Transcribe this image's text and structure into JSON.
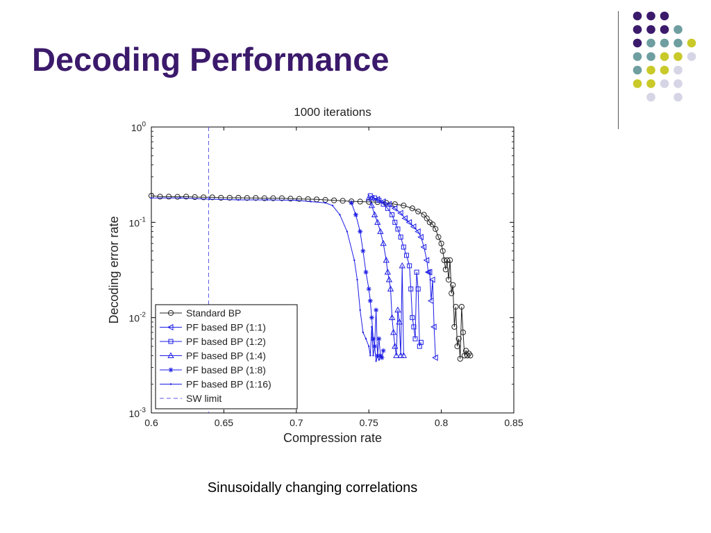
{
  "slide": {
    "title": "Decoding Performance",
    "caption": "Sinusoidally changing correlations"
  },
  "decor": {
    "dot_colors": [
      "#3b1a6b",
      "#6f9ea0",
      "#c9c92a",
      "#d5d5e6"
    ]
  },
  "chart_data": {
    "type": "line",
    "title": "1000 iterations",
    "xlabel": "Compression rate",
    "ylabel": "Decoding error rate",
    "xlim": [
      0.6,
      0.85
    ],
    "ylim": [
      0.001,
      1
    ],
    "yscale": "log",
    "xticks": [
      "0.6",
      "0.65",
      "0.7",
      "0.75",
      "0.8",
      "0.85"
    ],
    "yticks": [
      {
        "base": "10",
        "exp": "0",
        "value": 1
      },
      {
        "base": "10",
        "exp": "-1",
        "value": 0.1
      },
      {
        "base": "10",
        "exp": "-2",
        "value": 0.01
      },
      {
        "base": "10",
        "exp": "-3",
        "value": 0.001
      }
    ],
    "grid": false,
    "legend_position": "bottom-left",
    "series": [
      {
        "name": "Standard BP",
        "color": "#222222",
        "marker": "circle",
        "x": [
          0.6,
          0.606,
          0.612,
          0.618,
          0.624,
          0.63,
          0.636,
          0.642,
          0.648,
          0.654,
          0.66,
          0.666,
          0.672,
          0.678,
          0.684,
          0.69,
          0.696,
          0.702,
          0.708,
          0.714,
          0.72,
          0.726,
          0.732,
          0.738,
          0.744,
          0.75,
          0.756,
          0.762,
          0.768,
          0.774,
          0.78,
          0.784,
          0.788,
          0.79,
          0.792,
          0.794,
          0.796,
          0.798,
          0.8,
          0.801,
          0.802,
          0.803,
          0.804,
          0.805,
          0.806,
          0.807,
          0.808,
          0.809,
          0.81,
          0.811,
          0.812,
          0.813,
          0.814,
          0.815,
          0.816,
          0.817,
          0.818,
          0.819,
          0.82
        ],
        "y": [
          0.19,
          0.186,
          0.186,
          0.185,
          0.186,
          0.184,
          0.183,
          0.183,
          0.181,
          0.181,
          0.181,
          0.18,
          0.18,
          0.179,
          0.179,
          0.179,
          0.177,
          0.176,
          0.175,
          0.174,
          0.172,
          0.17,
          0.168,
          0.166,
          0.165,
          0.164,
          0.163,
          0.16,
          0.155,
          0.15,
          0.14,
          0.13,
          0.12,
          0.11,
          0.1,
          0.095,
          0.085,
          0.07,
          0.06,
          0.05,
          0.04,
          0.032,
          0.04,
          0.025,
          0.04,
          0.018,
          0.022,
          0.008,
          0.013,
          0.005,
          0.006,
          0.0037,
          0.013,
          0.007,
          0.004,
          0.0045,
          0.004,
          0.0042,
          0.004
        ]
      },
      {
        "name": "PF based BP (1:1)",
        "color": "#1a1ae6",
        "marker": "triangle-left",
        "x": [
          0.752,
          0.756,
          0.76,
          0.764,
          0.768,
          0.772,
          0.775,
          0.778,
          0.781,
          0.784,
          0.786,
          0.788,
          0.79,
          0.791,
          0.792,
          0.793,
          0.794,
          0.795,
          0.796
        ],
        "y": [
          0.18,
          0.175,
          0.165,
          0.155,
          0.14,
          0.125,
          0.11,
          0.1,
          0.09,
          0.08,
          0.07,
          0.055,
          0.04,
          0.03,
          0.03,
          0.015,
          0.025,
          0.008,
          0.0038
        ]
      },
      {
        "name": "PF based BP (1:2)",
        "color": "#1a1ae6",
        "marker": "square",
        "x": [
          0.751,
          0.754,
          0.757,
          0.76,
          0.763,
          0.766,
          0.768,
          0.77,
          0.772,
          0.774,
          0.776,
          0.778,
          0.779,
          0.78,
          0.781,
          0.782,
          0.783,
          0.784,
          0.785,
          0.786
        ],
        "y": [
          0.19,
          0.18,
          0.17,
          0.155,
          0.14,
          0.12,
          0.1,
          0.085,
          0.07,
          0.055,
          0.045,
          0.035,
          0.02,
          0.01,
          0.008,
          0.006,
          0.03,
          0.02,
          0.005,
          0.0055
        ]
      },
      {
        "name": "PF based BP (1:4)",
        "color": "#1a1ae6",
        "marker": "triangle-up",
        "x": [
          0.75,
          0.752,
          0.754,
          0.756,
          0.758,
          0.76,
          0.762,
          0.763,
          0.764,
          0.765,
          0.766,
          0.767,
          0.768,
          0.769,
          0.77,
          0.771,
          0.772,
          0.773,
          0.774
        ],
        "y": [
          0.18,
          0.15,
          0.12,
          0.1,
          0.08,
          0.06,
          0.04,
          0.03,
          0.025,
          0.02,
          0.01,
          0.007,
          0.005,
          0.004,
          0.012,
          0.009,
          0.004,
          0.035,
          0.004
        ]
      },
      {
        "name": "PF based BP (1:8)",
        "color": "#1a1ae6",
        "marker": "star",
        "x": [
          0.738,
          0.741,
          0.744,
          0.746,
          0.748,
          0.75,
          0.751,
          0.752,
          0.753,
          0.754,
          0.755,
          0.756,
          0.757,
          0.758,
          0.759,
          0.76
        ],
        "y": [
          0.16,
          0.12,
          0.08,
          0.05,
          0.03,
          0.02,
          0.015,
          0.01,
          0.006,
          0.005,
          0.012,
          0.004,
          0.006,
          0.004,
          0.0038,
          0.0045
        ]
      },
      {
        "name": "PF based BP (1:16)",
        "color": "#1a1ae6",
        "marker": "dot",
        "x": [
          0.6,
          0.62,
          0.64,
          0.66,
          0.68,
          0.7,
          0.71,
          0.72,
          0.725,
          0.73,
          0.735,
          0.74,
          0.742,
          0.744,
          0.746,
          0.748,
          0.75,
          0.751,
          0.752,
          0.753,
          0.754,
          0.755,
          0.756,
          0.757,
          0.758
        ],
        "y": [
          0.18,
          0.18,
          0.175,
          0.172,
          0.172,
          0.17,
          0.165,
          0.16,
          0.15,
          0.12,
          0.08,
          0.04,
          0.025,
          0.012,
          0.007,
          0.006,
          0.005,
          0.004,
          0.008,
          0.004,
          0.005,
          0.0035,
          0.004,
          0.0036,
          0.004
        ]
      },
      {
        "name": "SW limit",
        "color": "#5a5ae6",
        "marker": "none",
        "dashed": true,
        "x": [
          0.6395,
          0.6395
        ],
        "y": [
          1,
          0.001
        ]
      }
    ]
  }
}
